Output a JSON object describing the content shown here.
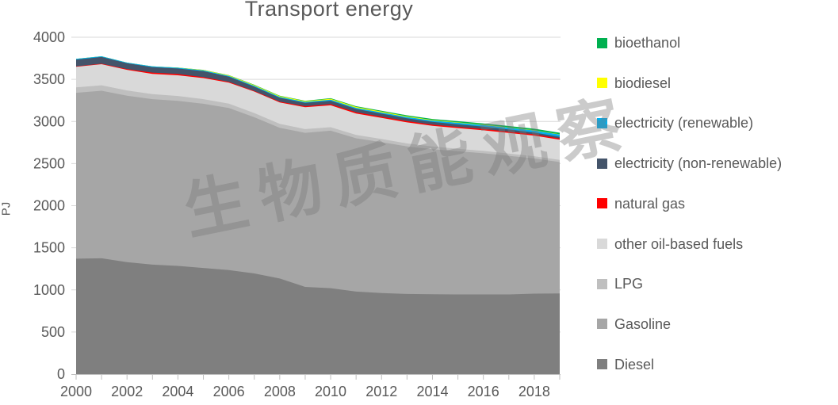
{
  "title": "Transport energy",
  "watermark_text": "生物质能观察",
  "chart_data": {
    "type": "area",
    "stacked": true,
    "title": "Transport energy",
    "xlabel": "",
    "ylabel": "PJ",
    "ylim": [
      0,
      4000
    ],
    "ytick_step": 500,
    "grid": true,
    "legend_position": "right",
    "text_color": "#595959",
    "grid_color": "#d9d9d9",
    "axis_line_color": "#bfbfbf",
    "x": [
      2000,
      2001,
      2002,
      2003,
      2004,
      2005,
      2006,
      2007,
      2008,
      2009,
      2010,
      2011,
      2012,
      2013,
      2014,
      2015,
      2016,
      2017,
      2018,
      2019
    ],
    "xticks_labeled": [
      2000,
      2002,
      2004,
      2006,
      2008,
      2010,
      2012,
      2014,
      2016,
      2018
    ],
    "series": [
      {
        "name": "Diesel",
        "color": "#7f7f7f",
        "values": [
          1370,
          1375,
          1330,
          1300,
          1285,
          1260,
          1235,
          1195,
          1135,
          1035,
          1020,
          980,
          962,
          952,
          948,
          946,
          946,
          946,
          955,
          958
        ]
      },
      {
        "name": "Gasoline",
        "color": "#a6a6a6",
        "values": [
          1970,
          1990,
          1975,
          1965,
          1960,
          1950,
          1925,
          1855,
          1790,
          1830,
          1870,
          1820,
          1792,
          1752,
          1722,
          1700,
          1676,
          1646,
          1606,
          1560
        ]
      },
      {
        "name": "LPG",
        "color": "#bfbfbf",
        "values": [
          65,
          65,
          63,
          60,
          58,
          55,
          52,
          50,
          46,
          44,
          42,
          40,
          38,
          35,
          33,
          30,
          28,
          27,
          26,
          25
        ]
      },
      {
        "name": "other oil-based fuels",
        "color": "#d9d9d9",
        "values": [
          245,
          250,
          245,
          240,
          245,
          250,
          250,
          255,
          255,
          260,
          260,
          255,
          250,
          250,
          245,
          245,
          245,
          245,
          245,
          240
        ]
      },
      {
        "name": "natural gas",
        "color": "#ff0000",
        "values": [
          5,
          6,
          10,
          15,
          15,
          12,
          8,
          8,
          10,
          12,
          14,
          15,
          15,
          15,
          15,
          15,
          15,
          15,
          15,
          15
        ]
      },
      {
        "name": "electricity (non-renewable)",
        "color": "#44546a",
        "values": [
          80,
          80,
          68,
          65,
          66,
          70,
          62,
          50,
          45,
          40,
          40,
          38,
          36,
          34,
          32,
          30,
          28,
          25,
          22,
          20
        ]
      },
      {
        "name": "electricity (renewable)",
        "color": "#00b0f0",
        "values": [
          8,
          8,
          8,
          9,
          9,
          10,
          10,
          10,
          10,
          11,
          12,
          13,
          14,
          15,
          16,
          18,
          20,
          22,
          24,
          26
        ]
      },
      {
        "name": "biodiesel",
        "color": "#ffff00",
        "values": [
          0,
          0,
          0,
          0,
          1,
          4,
          6,
          9,
          10,
          9,
          12,
          12,
          10,
          8,
          6,
          5,
          4,
          4,
          4,
          4
        ]
      },
      {
        "name": "bioethanol",
        "color": "#00b050",
        "values": [
          0,
          0,
          0,
          0,
          1,
          2,
          3,
          4,
          4,
          5,
          6,
          8,
          10,
          12,
          13,
          14,
          15,
          16,
          17,
          18
        ]
      }
    ],
    "legend_order_top_to_bottom": [
      "bioethanol",
      "biodiesel",
      "electricity (renewable)",
      "electricity (non-renewable)",
      "natural gas",
      "other oil-based fuels",
      "LPG",
      "Gasoline",
      "Diesel"
    ]
  }
}
